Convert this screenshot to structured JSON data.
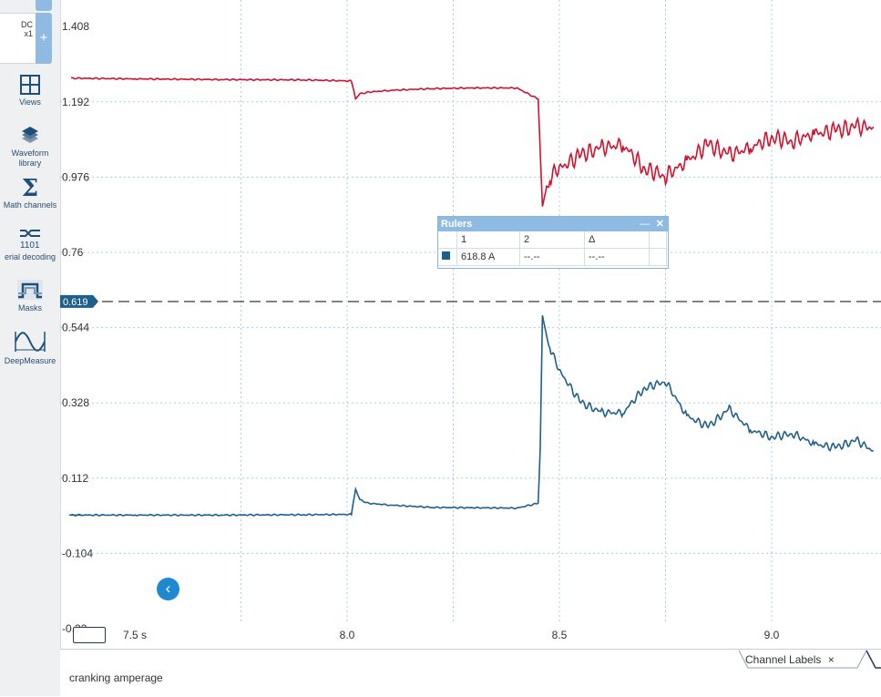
{
  "sidebar": {
    "channel": {
      "coupling": "DC",
      "probe": "x1"
    },
    "add_label": "+",
    "tools": [
      {
        "label": "Views",
        "icon": "views-icon"
      },
      {
        "label": "Waveform library",
        "label_lines": [
          "Waveform",
          "library"
        ],
        "icon": "waveform-library-icon"
      },
      {
        "label": "Math channels",
        "icon": "sigma-icon"
      },
      {
        "label": "erial decoding",
        "icon": "serial-decoding-icon"
      },
      {
        "label": "Masks",
        "icon": "masks-icon"
      },
      {
        "label": "DeepMeasure",
        "icon": "deepmeasure-icon"
      }
    ]
  },
  "chart_data": {
    "type": "line",
    "title": "",
    "xlabel": "",
    "ylabel": "",
    "x_unit": "s",
    "x_ticks": [
      "7.5 s",
      "8.0",
      "8.5",
      "9.0"
    ],
    "y_ticks": [
      "1.408",
      "1.192",
      "0.976",
      "0.76",
      "0.544",
      "0.328",
      "0.112",
      "-0.104",
      "-0.32"
    ],
    "xlim": [
      7.28,
      9.24
    ],
    "ylim": [
      -0.32,
      1.46
    ],
    "grid": true,
    "ruler_value_label": "0.619",
    "ruler_value": 0.619,
    "series": [
      {
        "color": "#d0122c",
        "x": [
          7.35,
          7.5,
          7.7,
          7.9,
          8.01,
          8.02,
          8.03,
          8.05,
          8.1,
          8.2,
          8.3,
          8.4,
          8.45,
          8.46,
          8.465,
          8.47,
          8.48,
          8.5,
          8.55,
          8.6,
          8.65,
          8.7,
          8.75,
          8.8,
          8.85,
          8.9,
          8.95,
          9.0,
          9.05,
          9.1,
          9.15,
          9.2,
          9.24
        ],
        "y": [
          1.26,
          1.258,
          1.256,
          1.255,
          1.252,
          1.2,
          1.215,
          1.22,
          1.225,
          1.23,
          1.232,
          1.232,
          1.2,
          0.89,
          0.92,
          0.95,
          0.98,
          1.0,
          1.04,
          1.06,
          1.07,
          1.0,
          0.98,
          1.02,
          1.07,
          1.04,
          1.06,
          1.09,
          1.08,
          1.1,
          1.11,
          1.12,
          1.12
        ]
      },
      {
        "color": "#1f5f8b",
        "x": [
          7.35,
          7.5,
          7.7,
          7.9,
          8.01,
          8.02,
          8.03,
          8.05,
          8.1,
          8.2,
          8.3,
          8.4,
          8.45,
          8.455,
          8.46,
          8.47,
          8.48,
          8.5,
          8.55,
          8.6,
          8.65,
          8.7,
          8.75,
          8.8,
          8.85,
          8.9,
          8.95,
          9.0,
          9.05,
          9.1,
          9.15,
          9.2,
          9.24
        ],
        "y": [
          0.006,
          0.006,
          0.006,
          0.007,
          0.008,
          0.08,
          0.05,
          0.04,
          0.035,
          0.028,
          0.027,
          0.026,
          0.04,
          0.2,
          0.58,
          0.52,
          0.48,
          0.42,
          0.33,
          0.3,
          0.3,
          0.37,
          0.39,
          0.29,
          0.26,
          0.31,
          0.25,
          0.23,
          0.24,
          0.21,
          0.2,
          0.22,
          0.19
        ]
      }
    ]
  },
  "rulers_panel": {
    "title": "Rulers",
    "headers": [
      "1",
      "2",
      "Δ"
    ],
    "row": [
      "618.8 A",
      "--.--",
      "--.--"
    ]
  },
  "footer": {
    "note": "cranking amperage",
    "channel_labels_tab": "Channel Labels",
    "channel_labels_close": "×"
  }
}
